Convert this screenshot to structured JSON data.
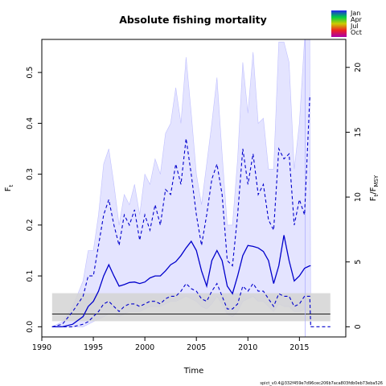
{
  "chart_data": {
    "type": "line",
    "title": "Absolute fishing mortality",
    "xlabel": "Time",
    "ylabel_left": "F",
    "ylabel_left_sub": "t",
    "ylabel_right": "F",
    "ylabel_right_sub": "t",
    "ylabel_right_denom": "F",
    "ylabel_right_denom_sub": "MSY",
    "xlim": [
      1990,
      2019.5
    ],
    "ylim": [
      -0.02,
      0.565
    ],
    "right_axis_factor": 0.0255,
    "x_ticks": [
      "1990",
      "1995",
      "2000",
      "2005",
      "2010",
      "2015"
    ],
    "y_ticks": [
      "0.0",
      "0.1",
      "0.2",
      "0.3",
      "0.4",
      "0.5"
    ],
    "y2_ticks": [
      "0",
      "5",
      "10",
      "15",
      "20"
    ],
    "legend": {
      "position": "top-right",
      "labels": [
        "Jan",
        "Apr",
        "Jul",
        "Oct"
      ],
      "colors": [
        "#2222ee",
        "#00cc44",
        "#cccc00",
        "#ee2222",
        "#aa00aa"
      ]
    },
    "footer": "spict_v0.4@332f459e7d96cec206b7aca803fdb0eb73eba526",
    "fmsy_band": {
      "x": [
        1991,
        2018
      ],
      "lower": 0.011,
      "upper": 0.066,
      "center": 0.025,
      "color": "#d3d3d3"
    },
    "series": [
      {
        "role": "estimate",
        "color": "#0000cc",
        "style": "solid",
        "x": [
          1991,
          1992,
          1993,
          1994,
          1994.5,
          1995,
          1995.5,
          1996,
          1996.5,
          1997,
          1997.5,
          1998,
          1998.5,
          1999,
          1999.5,
          2000,
          2000.5,
          2001,
          2001.5,
          2002,
          2002.5,
          2003,
          2003.5,
          2004,
          2004.5,
          2005,
          2005.5,
          2006,
          2006.5,
          2007,
          2007.5,
          2008,
          2008.5,
          2009,
          2009.5,
          2010,
          2010.5,
          2011,
          2011.5,
          2012,
          2012.5,
          2013,
          2013.5,
          2014,
          2014.5,
          2015,
          2015.5,
          2016,
          2016.1
        ],
        "y": [
          0.0,
          0.0,
          0.005,
          0.02,
          0.04,
          0.05,
          0.07,
          0.1,
          0.122,
          0.1,
          0.08,
          0.083,
          0.087,
          0.088,
          0.085,
          0.088,
          0.096,
          0.1,
          0.1,
          0.11,
          0.122,
          0.128,
          0.14,
          0.155,
          0.168,
          0.15,
          0.11,
          0.08,
          0.13,
          0.15,
          0.13,
          0.08,
          0.065,
          0.1,
          0.14,
          0.16,
          0.158,
          0.155,
          0.148,
          0.13,
          0.085,
          0.12,
          0.18,
          0.13,
          0.09,
          0.1,
          0.115,
          0.12,
          0.12
        ]
      },
      {
        "role": "upper-ci",
        "color": "#0000cc",
        "style": "dashed",
        "x": [
          1991,
          1992,
          1993,
          1994,
          1994.5,
          1995,
          1995.5,
          1996,
          1996.5,
          1997,
          1997.5,
          1998,
          1998.5,
          1999,
          1999.5,
          2000,
          2000.5,
          2001,
          2001.5,
          2002,
          2002.5,
          2003,
          2003.5,
          2004,
          2004.5,
          2005,
          2005.5,
          2006,
          2006.5,
          2007,
          2007.5,
          2008,
          2008.5,
          2009,
          2009.5,
          2010,
          2010.5,
          2011,
          2011.5,
          2012,
          2012.5,
          2013,
          2013.5,
          2014,
          2014.5,
          2015,
          2015.5,
          2016,
          2016.1
        ],
        "y": [
          0.0,
          0.005,
          0.03,
          0.06,
          0.1,
          0.1,
          0.16,
          0.22,
          0.25,
          0.2,
          0.16,
          0.22,
          0.2,
          0.23,
          0.17,
          0.22,
          0.19,
          0.24,
          0.2,
          0.27,
          0.26,
          0.32,
          0.28,
          0.37,
          0.3,
          0.22,
          0.16,
          0.22,
          0.29,
          0.32,
          0.26,
          0.13,
          0.12,
          0.22,
          0.35,
          0.28,
          0.34,
          0.26,
          0.28,
          0.21,
          0.19,
          0.35,
          0.33,
          0.34,
          0.2,
          0.25,
          0.22,
          0.45,
          0.45
        ]
      },
      {
        "role": "lower-ci",
        "color": "#0000cc",
        "style": "dashed",
        "x": [
          1991,
          1992,
          1993,
          1994,
          1994.5,
          1995,
          1995.5,
          1996,
          1996.5,
          1997,
          1997.5,
          1998,
          1998.5,
          1999,
          1999.5,
          2000,
          2000.5,
          2001,
          2001.5,
          2002,
          2002.5,
          2003,
          2003.5,
          2004,
          2004.5,
          2005,
          2005.5,
          2006,
          2006.5,
          2007,
          2007.5,
          2008,
          2008.5,
          2009,
          2009.5,
          2010,
          2010.5,
          2011,
          2011.5,
          2012,
          2012.5,
          2013,
          2013.5,
          2014,
          2014.5,
          2015,
          2015.5,
          2016,
          2016.1
        ],
        "y": [
          0.0,
          0.0,
          0.0,
          0.005,
          0.01,
          0.02,
          0.03,
          0.045,
          0.05,
          0.04,
          0.03,
          0.04,
          0.045,
          0.045,
          0.04,
          0.045,
          0.05,
          0.05,
          0.045,
          0.055,
          0.06,
          0.06,
          0.07,
          0.085,
          0.075,
          0.07,
          0.055,
          0.05,
          0.07,
          0.085,
          0.06,
          0.035,
          0.035,
          0.045,
          0.08,
          0.07,
          0.085,
          0.07,
          0.07,
          0.055,
          0.04,
          0.065,
          0.06,
          0.06,
          0.04,
          0.045,
          0.06,
          0.06,
          0.0
        ]
      },
      {
        "role": "seasonal-upper",
        "color": "#c0c0ff",
        "style": "band",
        "x": [
          1991,
          1992,
          1993,
          1994,
          1994.5,
          1995,
          1995.5,
          1996,
          1996.5,
          1997,
          1997.5,
          1998,
          1998.5,
          1999,
          1999.5,
          2000,
          2000.5,
          2001,
          2001.5,
          2002,
          2002.5,
          2003,
          2003.5,
          2004,
          2004.5,
          2005,
          2005.5,
          2006,
          2006.5,
          2007,
          2007.5,
          2008,
          2008.5,
          2009,
          2009.5,
          2010,
          2010.5,
          2011,
          2011.5,
          2012,
          2012.5,
          2013,
          2013.5,
          2014,
          2014.5,
          2015,
          2015.5,
          2016,
          2016.1
        ],
        "y": [
          0.0,
          0.01,
          0.04,
          0.09,
          0.15,
          0.15,
          0.22,
          0.32,
          0.35,
          0.28,
          0.2,
          0.26,
          0.24,
          0.28,
          0.22,
          0.3,
          0.28,
          0.33,
          0.3,
          0.38,
          0.4,
          0.47,
          0.4,
          0.53,
          0.42,
          0.3,
          0.24,
          0.32,
          0.4,
          0.49,
          0.34,
          0.2,
          0.2,
          0.33,
          0.52,
          0.42,
          0.54,
          0.4,
          0.41,
          0.31,
          0.31,
          0.56,
          0.56,
          0.52,
          0.31,
          0.4,
          0.565,
          0.565,
          0.0
        ]
      },
      {
        "role": "seasonal-lower",
        "color": "#c0c0ff",
        "style": "band",
        "x": [
          1991,
          1992,
          1993,
          1994,
          1994.5,
          1995,
          1995.5,
          1996,
          1996.5,
          1997,
          1997.5,
          1998,
          1998.5,
          1999,
          1999.5,
          2000,
          2000.5,
          2001,
          2001.5,
          2002,
          2002.5,
          2003,
          2003.5,
          2004,
          2004.5,
          2005,
          2005.5,
          2006,
          2006.5,
          2007,
          2007.5,
          2008,
          2008.5,
          2009,
          2009.5,
          2010,
          2010.5,
          2011,
          2011.5,
          2012,
          2012.5,
          2013,
          2013.5,
          2014,
          2014.5,
          2015,
          2015.5,
          2016,
          2016.1
        ],
        "y": [
          0.0,
          0.0,
          0.0,
          0.0,
          0.005,
          0.01,
          0.015,
          0.02,
          0.025,
          0.025,
          0.02,
          0.025,
          0.03,
          0.03,
          0.03,
          0.035,
          0.04,
          0.04,
          0.04,
          0.045,
          0.05,
          0.05,
          0.055,
          0.06,
          0.055,
          0.05,
          0.04,
          0.035,
          0.045,
          0.06,
          0.045,
          0.025,
          0.02,
          0.03,
          0.05,
          0.055,
          0.06,
          0.05,
          0.05,
          0.04,
          0.03,
          0.045,
          0.04,
          0.04,
          0.03,
          0.03,
          0.035,
          0.03,
          0.0
        ]
      }
    ]
  }
}
